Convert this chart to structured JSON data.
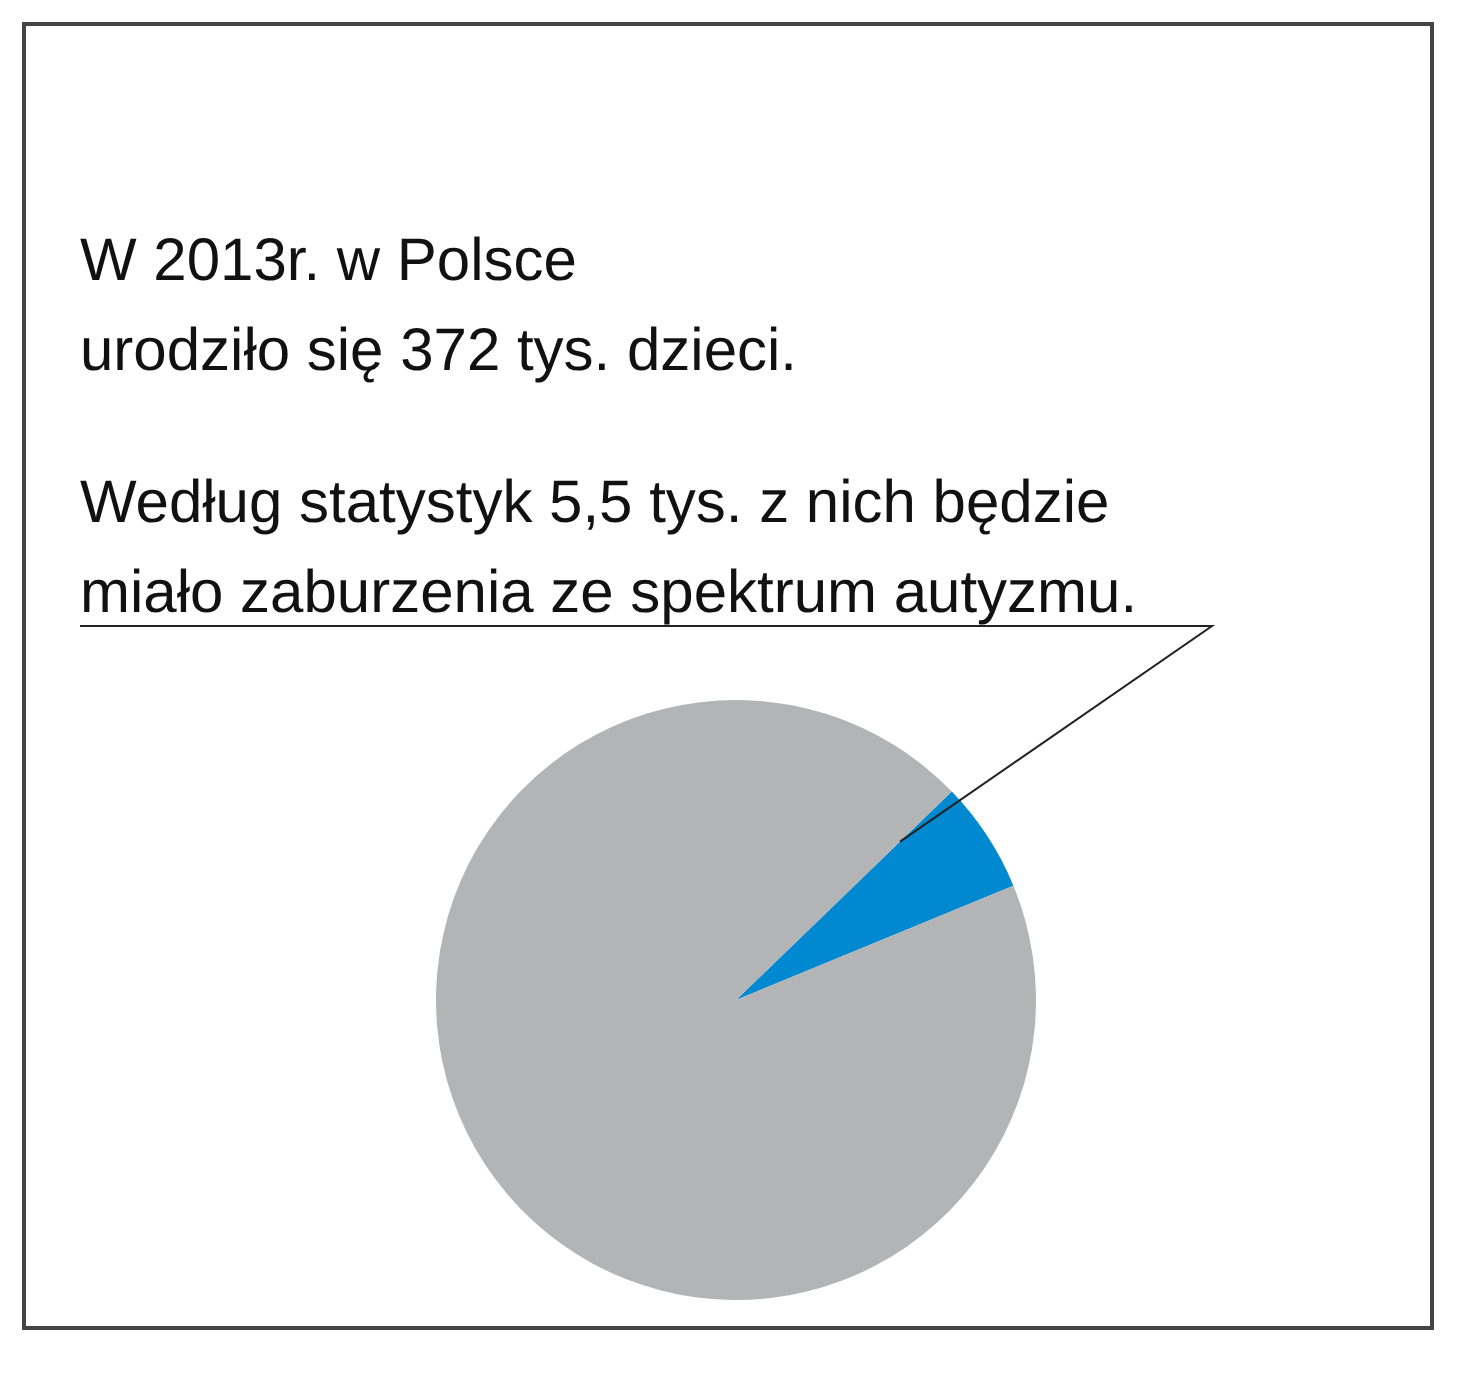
{
  "chart_data": {
    "type": "pie",
    "categories": [
      null,
      null
    ],
    "values": [
      6,
      94
    ],
    "colors": [
      "#0088d1",
      "#b3b4b6"
    ],
    "annotations": [
      "W 2013r. w Polsce\nurodziło się 372 tys. dzieci.",
      "Według statystyk 5,5 tys. z nich będzie\nmiało zaburzenia ze spektrum autyzmu."
    ]
  }
}
